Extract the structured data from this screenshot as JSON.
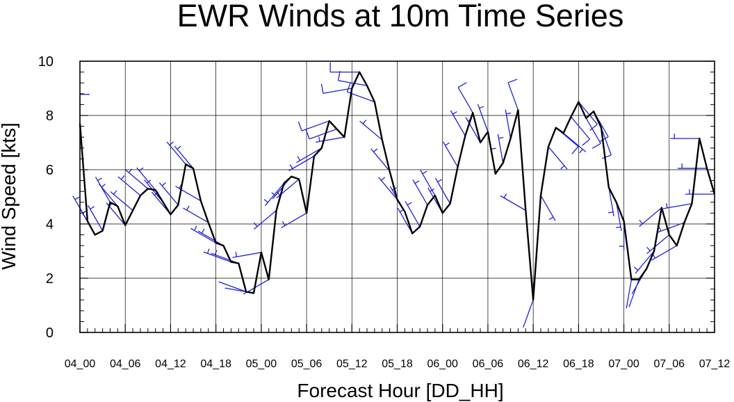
{
  "chart_data": {
    "type": "line",
    "title": "EWR Winds at 10m Time Series",
    "xlabel": "Forecast Hour [DD_HH]",
    "ylabel": "Wind Speed [kts]",
    "xlim": [
      0,
      84
    ],
    "ylim": [
      0,
      10
    ],
    "yticks": [
      0,
      2,
      4,
      6,
      8,
      10
    ],
    "xtick_labels": [
      "04_00",
      "04_06",
      "04_12",
      "04_18",
      "05_00",
      "05_06",
      "05_12",
      "05_18",
      "06_00",
      "06_06",
      "06_12",
      "06_18",
      "07_00",
      "07_06",
      "07_12"
    ],
    "grid": true,
    "line_color": "#000000",
    "barb_color": "#1f1fd6",
    "series": [
      {
        "forecast_hour": [
          0,
          1,
          2,
          3,
          4,
          5,
          6,
          7,
          8,
          9,
          10,
          11,
          12,
          13,
          14,
          15,
          16,
          17,
          18,
          19,
          20,
          21,
          22,
          23,
          24,
          25,
          26,
          27,
          28,
          29,
          30,
          31,
          32,
          33,
          34,
          35,
          36,
          37,
          38,
          39,
          40,
          41,
          42,
          43,
          44,
          45,
          46,
          47,
          48,
          49,
          50,
          51,
          52,
          53,
          54,
          55,
          56,
          57,
          58,
          59,
          60,
          61,
          62,
          63,
          64,
          65,
          66,
          67,
          68,
          69,
          70,
          71,
          72,
          73,
          74,
          75,
          76,
          77,
          78,
          79,
          80,
          81,
          82,
          83,
          84
        ],
        "values": [
          7.7,
          4.1,
          3.6,
          3.75,
          4.8,
          4.65,
          3.95,
          4.5,
          5.05,
          5.3,
          5.25,
          4.8,
          4.35,
          4.7,
          6.2,
          6.05,
          4.85,
          4.05,
          3.3,
          3.2,
          2.6,
          2.55,
          1.5,
          1.45,
          2.95,
          1.95,
          4.5,
          5.5,
          5.75,
          5.65,
          4.4,
          6.5,
          6.8,
          7.8,
          7.5,
          7.2,
          9.0,
          9.6,
          9.1,
          8.5,
          7.1,
          5.95,
          4.9,
          4.45,
          3.65,
          3.9,
          4.7,
          5.05,
          4.4,
          4.75,
          6.1,
          7.25,
          8.1,
          7.0,
          7.4,
          5.85,
          6.25,
          7.15,
          8.2,
          4.5,
          1.2,
          5.05,
          6.85,
          7.55,
          7.35,
          7.95,
          8.5,
          7.9,
          8.15,
          7.55,
          5.35,
          4.8,
          4.1,
          1.95,
          1.95,
          2.35,
          3.0,
          4.6,
          3.6,
          3.2,
          4.05,
          4.75,
          7.15,
          6.05,
          5.1
        ],
        "direction_deg": [
          360,
          330,
          330,
          330,
          330,
          320,
          320,
          310,
          310,
          310,
          320,
          320,
          320,
          320,
          320,
          320,
          300,
          300,
          300,
          300,
          290,
          290,
          290,
          280,
          260,
          240,
          230,
          220,
          220,
          230,
          240,
          240,
          240,
          250,
          250,
          260,
          260,
          270,
          280,
          290,
          310,
          320,
          320,
          330,
          330,
          330,
          330,
          330,
          330,
          330,
          330,
          330,
          330,
          330,
          340,
          350,
          350,
          350,
          340,
          300,
          200,
          150,
          140,
          130,
          130,
          140,
          140,
          150,
          150,
          160,
          170,
          170,
          180,
          190,
          200,
          210,
          220,
          230,
          230,
          240,
          250,
          260,
          270,
          270,
          270
        ]
      }
    ]
  }
}
